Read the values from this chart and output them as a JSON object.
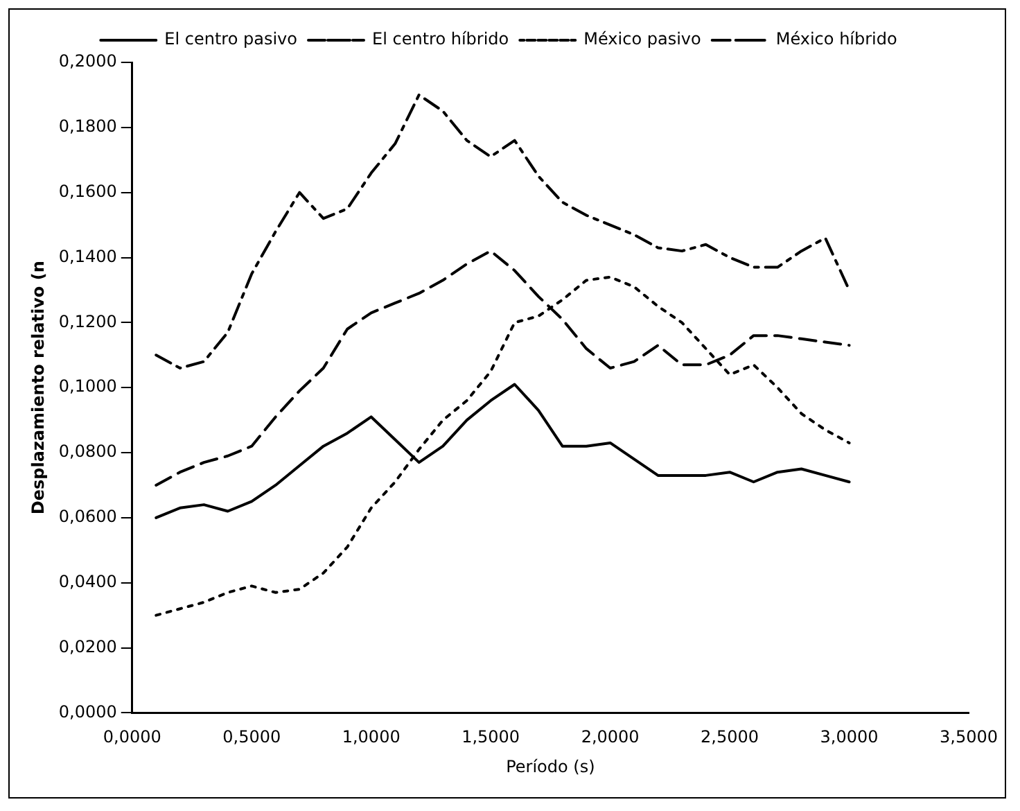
{
  "chart_data": {
    "type": "line",
    "xlabel": "Período (s)",
    "ylabel": "Desplazamiento relativo (n",
    "legend": "top",
    "grid": false,
    "marker": "none",
    "xlim": [
      0,
      3.5
    ],
    "xticks": [
      {
        "value": 0,
        "label": "0,0000"
      },
      {
        "value": 0.5,
        "label": "0,5000"
      },
      {
        "value": 1,
        "label": "1,0000"
      },
      {
        "value": 1.5,
        "label": "1,5000"
      },
      {
        "value": 2,
        "label": "2,0000"
      },
      {
        "value": 2.5,
        "label": "2,5000"
      },
      {
        "value": 3,
        "label": "3,0000"
      },
      {
        "value": 3.5,
        "label": "3,5000"
      }
    ],
    "ylim": [
      0,
      0.2
    ],
    "yticks": [
      {
        "value": 0,
        "label": "0,0000"
      },
      {
        "value": 0.02,
        "label": "0,0200"
      },
      {
        "value": 0.04,
        "label": "0,0400"
      },
      {
        "value": 0.06,
        "label": "0,0600"
      },
      {
        "value": 0.08,
        "label": "0,0800"
      },
      {
        "value": 0.1,
        "label": "0,1000"
      },
      {
        "value": 0.12,
        "label": "0,1200"
      },
      {
        "value": 0.14,
        "label": "0,1400"
      },
      {
        "value": 0.16,
        "label": "0,1600"
      },
      {
        "value": 0.18,
        "label": "0,1800"
      },
      {
        "value": 0.2,
        "label": "0,2000"
      }
    ],
    "x": [
      0.1,
      0.2,
      0.3,
      0.4,
      0.5,
      0.6,
      0.7,
      0.8,
      0.9,
      1.0,
      1.1,
      1.2,
      1.3,
      1.4,
      1.5,
      1.6,
      1.7,
      1.8,
      1.9,
      2.0,
      2.1,
      2.2,
      2.3,
      2.4,
      2.5,
      2.6,
      2.7,
      2.8,
      2.9,
      3.0
    ],
    "series": [
      {
        "name": "El centro pasivo",
        "color": "#000000",
        "line_style": "solid",
        "values": [
          0.06,
          0.063,
          0.064,
          0.062,
          0.065,
          0.07,
          0.076,
          0.082,
          0.086,
          0.091,
          0.084,
          0.077,
          0.082,
          0.09,
          0.096,
          0.101,
          0.093,
          0.082,
          0.082,
          0.083,
          0.078,
          0.073,
          0.073,
          0.073,
          0.074,
          0.071,
          0.074,
          0.075,
          0.073,
          0.071
        ]
      },
      {
        "name": "El centro híbrido",
        "color": "#000000",
        "line_style": "dashed",
        "values": [
          0.07,
          0.074,
          0.077,
          0.079,
          0.082,
          0.091,
          0.099,
          0.106,
          0.118,
          0.123,
          0.126,
          0.129,
          0.133,
          0.138,
          0.142,
          0.136,
          0.128,
          0.121,
          0.112,
          0.106,
          0.108,
          0.113,
          0.107,
          0.107,
          0.11,
          0.116,
          0.116,
          0.115,
          0.114,
          0.113
        ]
      },
      {
        "name": "México pasivo",
        "color": "#000000",
        "line_style": "dotted",
        "values": [
          0.03,
          0.032,
          0.034,
          0.037,
          0.039,
          0.037,
          0.038,
          0.043,
          0.051,
          0.063,
          0.071,
          0.081,
          0.09,
          0.096,
          0.105,
          0.12,
          0.122,
          0.127,
          0.133,
          0.134,
          0.131,
          0.125,
          0.12,
          0.112,
          0.104,
          0.107,
          0.1,
          0.092,
          0.087,
          0.083
        ]
      },
      {
        "name": "México híbrido",
        "color": "#000000",
        "line_style": "dashdot",
        "values": [
          0.11,
          0.106,
          0.108,
          0.117,
          0.135,
          0.148,
          0.16,
          0.152,
          0.155,
          0.166,
          0.175,
          0.19,
          0.185,
          0.176,
          0.171,
          0.176,
          0.165,
          0.157,
          0.153,
          0.15,
          0.147,
          0.143,
          0.142,
          0.144,
          0.14,
          0.137,
          0.137,
          0.142,
          0.146,
          0.13
        ]
      }
    ]
  }
}
